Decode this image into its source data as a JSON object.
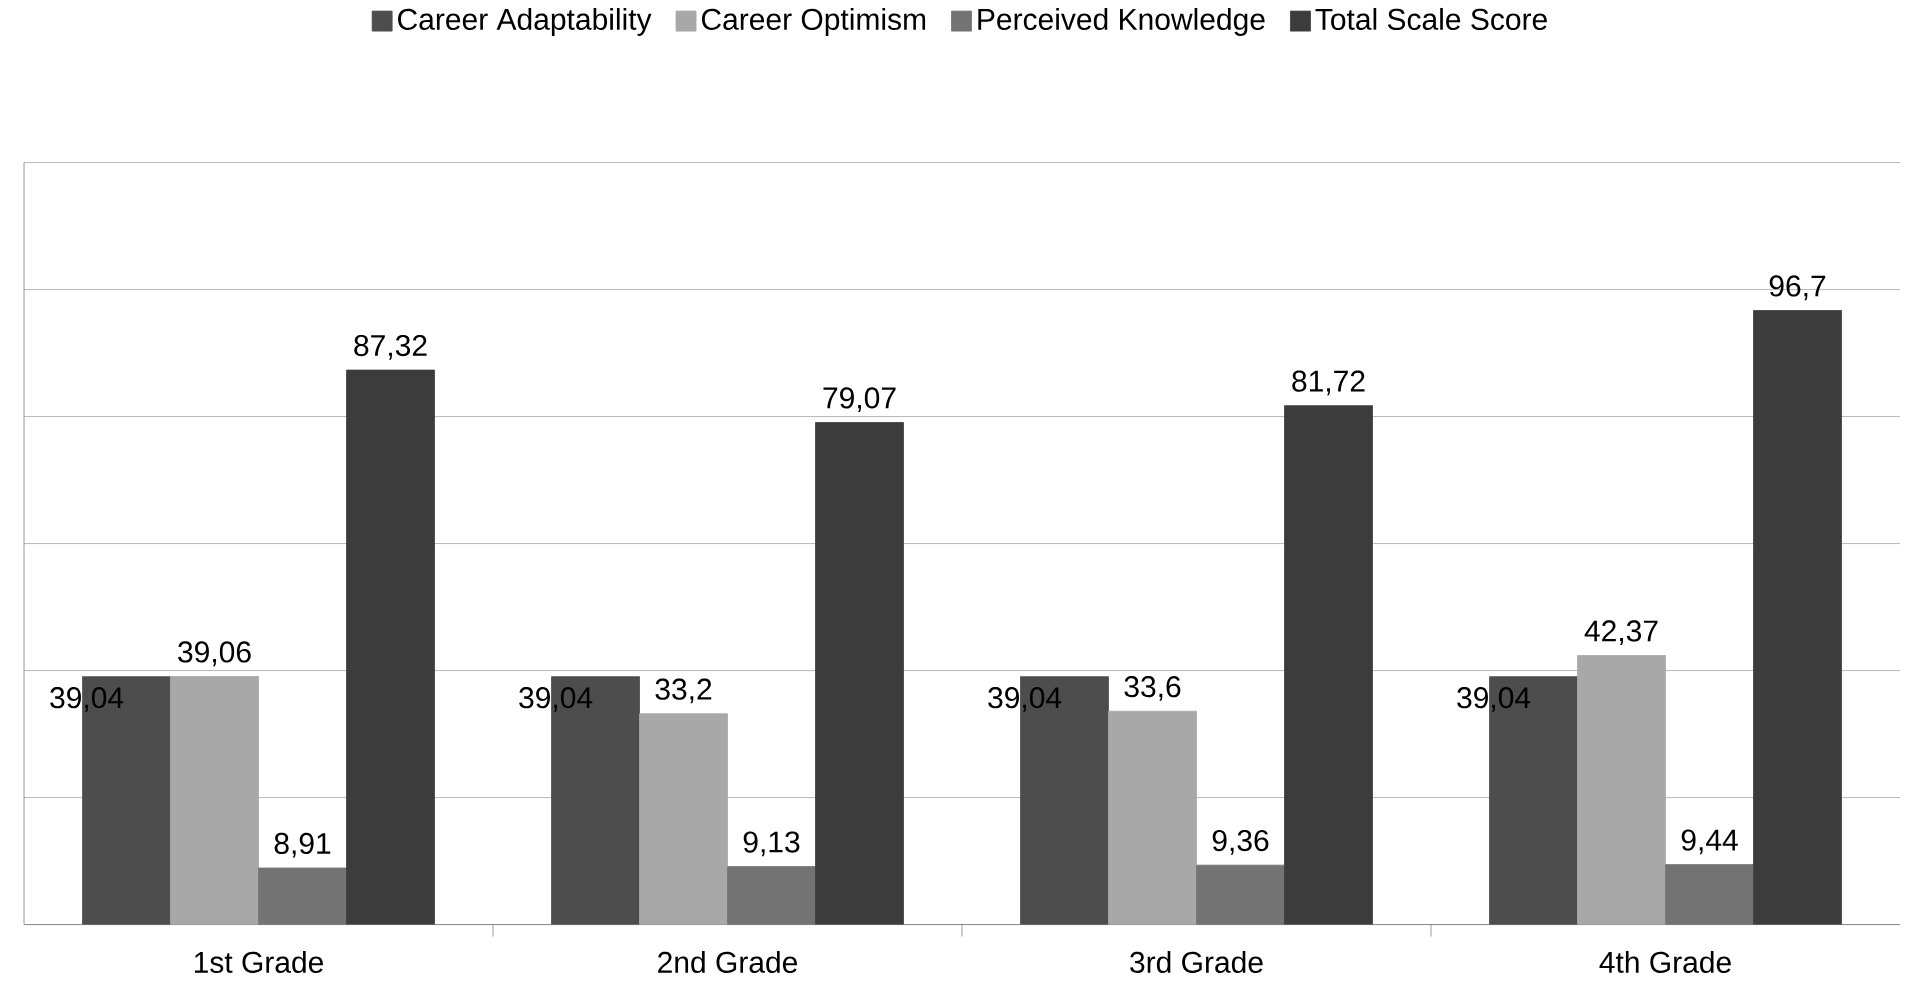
{
  "chart_data": {
    "type": "bar",
    "categories": [
      "1st Grade",
      "2nd Grade",
      "3rd Grade",
      "4th Grade"
    ],
    "series": [
      {
        "name": "Career Adaptability",
        "color": "#4d4d4d",
        "values": [
          39.04,
          39.04,
          39.04,
          39.04
        ],
        "value_labels": [
          "39,04",
          "39,04",
          "39,04",
          "39,04"
        ]
      },
      {
        "name": "Career Optimism",
        "color": "#a8a8a8",
        "values": [
          39.06,
          33.2,
          33.6,
          42.37
        ],
        "value_labels": [
          "39,06",
          "33,2",
          "33,6",
          "42,37"
        ]
      },
      {
        "name": "Perceived Knowledge",
        "color": "#737373",
        "values": [
          8.91,
          9.13,
          9.36,
          9.44
        ],
        "value_labels": [
          "8,91",
          "9,13",
          "9,36",
          "9,44"
        ]
      },
      {
        "name": "Total Scale Score",
        "color": "#3c3c3c",
        "values": [
          87.32,
          79.07,
          81.72,
          96.7
        ],
        "value_labels": [
          "87,32",
          "79,07",
          "81,72",
          "96,7"
        ]
      }
    ],
    "ylim": [
      0,
      120
    ],
    "yticks": [
      {
        "value": 0,
        "label": null
      },
      {
        "value": 20,
        "label": null
      },
      {
        "value": 40,
        "label": null
      },
      {
        "value": 60,
        "label": null
      },
      {
        "value": 80,
        "label": null
      },
      {
        "value": 100,
        "label": null
      },
      {
        "value": 120,
        "label": null
      }
    ],
    "grid": "y",
    "legend": "top",
    "tick_labels": "x"
  }
}
